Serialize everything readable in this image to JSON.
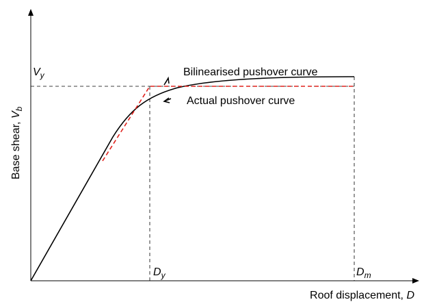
{
  "y_axis_label": {
    "text": "Base shear, ",
    "symbol": "V",
    "subscript": "b"
  },
  "x_axis_label": {
    "text": "Roof displacement, ",
    "symbol": "D"
  },
  "yield_force": {
    "symbol": "V",
    "subscript": "y"
  },
  "yield_displacement": {
    "symbol": "D",
    "subscript": "y"
  },
  "max_displacement": {
    "symbol": "D",
    "subscript": "m"
  },
  "curves": [
    {
      "label": "Bilinearised pushover curve"
    },
    {
      "label": "Actual pushover curve"
    }
  ]
}
